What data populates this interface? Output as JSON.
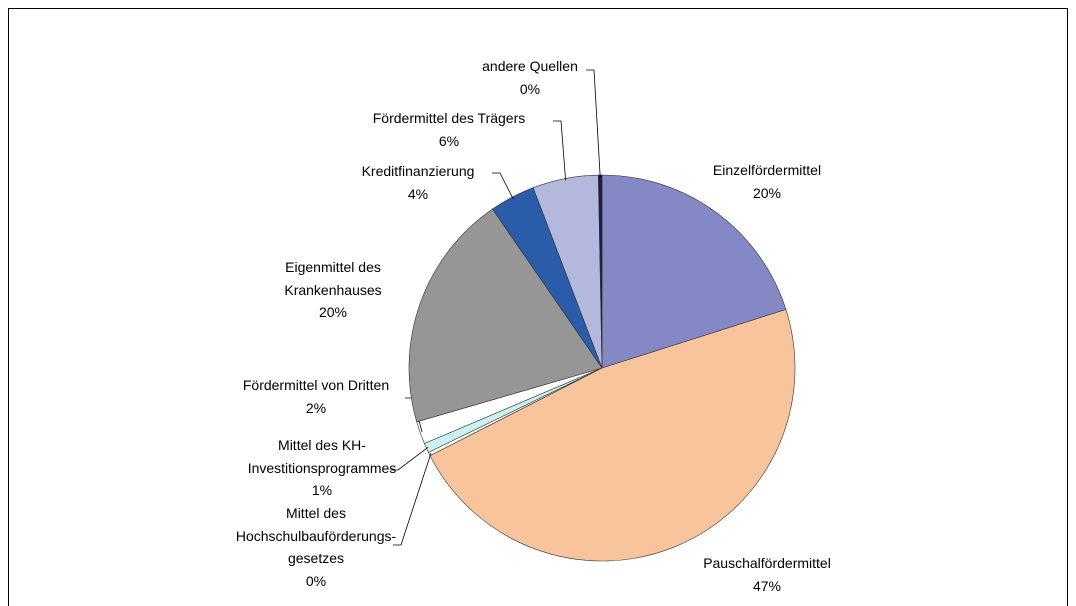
{
  "chart_data": {
    "type": "pie",
    "categories": [
      "Einzelfördermittel",
      "Pauschalfördermittel",
      "Mittel des\nHochschulbauförderungs-\ngesetzes",
      "Mittel des KH-\nInvestitionsprogrammes",
      "Fördermittel von Dritten",
      "Eigenmittel des\nKrankenhauses",
      "Kreditfinanzierung",
      "Fördermittel des Trägers",
      "andere Quellen"
    ],
    "values": [
      20.1,
      47.4,
      0.3,
      0.8,
      1.9,
      19.9,
      3.8,
      5.5,
      0.3
    ],
    "value_labels": [
      "20%",
      "47%",
      "0%",
      "1%",
      "2%",
      "20%",
      "4%",
      "6%",
      "0%"
    ],
    "colors": [
      "#8488c4",
      "#f8c49c",
      "#ffffff",
      "#ccefef",
      "#ffffff",
      "#969696",
      "#2a5caa",
      "#b4b8dc",
      "#1a1a4c"
    ]
  }
}
